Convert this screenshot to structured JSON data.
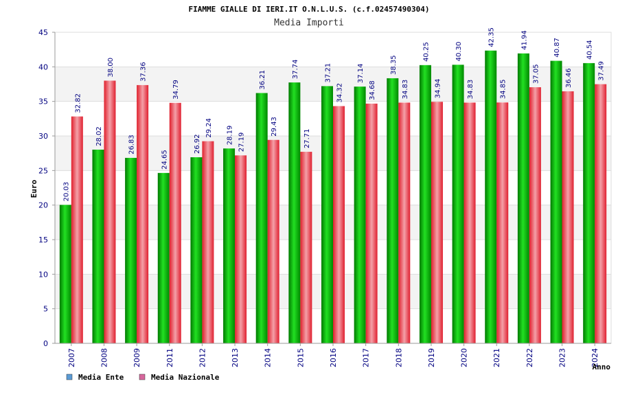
{
  "chart_data": {
    "type": "bar",
    "title": "FIAMME GIALLE DI IERI.IT O.N.L.U.S. (c.f.02457490304)",
    "subtitle": "Media Importi",
    "xlabel": "Anno",
    "ylabel": "Euro",
    "ylim": [
      0,
      45
    ],
    "yticks": [
      "0",
      "5",
      "10",
      "15",
      "20",
      "25",
      "30",
      "35",
      "40",
      "45"
    ],
    "categories": [
      "2007",
      "2008",
      "2009",
      "2011",
      "2012",
      "2013",
      "2014",
      "2015",
      "2016",
      "2017",
      "2018",
      "2019",
      "2020",
      "2021",
      "2022",
      "2023",
      "2024"
    ],
    "series": [
      {
        "name": "Media Ente",
        "color": "#00b000",
        "values": [
          20.03,
          28.02,
          26.83,
          24.65,
          26.92,
          28.19,
          36.21,
          37.74,
          37.21,
          37.14,
          38.35,
          40.25,
          40.3,
          42.35,
          41.94,
          40.87,
          40.54
        ],
        "labels": [
          "20.03",
          "28.02",
          "26.83",
          "24.65",
          "26.92",
          "28.19",
          "36.21",
          "37.74",
          "37.21",
          "37.14",
          "38.35",
          "40.25",
          "40.30",
          "42.35",
          "41.94",
          "40.87",
          "40.54"
        ]
      },
      {
        "name": "Media Nazionale",
        "color": "#e8303a",
        "values": [
          32.82,
          38.0,
          37.36,
          34.79,
          29.24,
          27.19,
          29.43,
          27.71,
          34.32,
          34.68,
          34.83,
          34.94,
          34.83,
          34.85,
          37.05,
          36.46,
          37.49
        ],
        "labels": [
          "32.82",
          "38.00",
          "37.36",
          "34.79",
          "29.24",
          "27.19",
          "29.43",
          "27.71",
          "34.32",
          "34.68",
          "34.83",
          "34.94",
          "34.83",
          "34.85",
          "37.05",
          "36.46",
          "37.49"
        ]
      }
    ],
    "legend": [
      {
        "label": "Media Ente",
        "swatch_color": "#5b9bd5"
      },
      {
        "label": "Media Nazionale",
        "swatch_color": "#d6679c"
      }
    ],
    "grid": true,
    "legend_position": "bottom-left"
  }
}
